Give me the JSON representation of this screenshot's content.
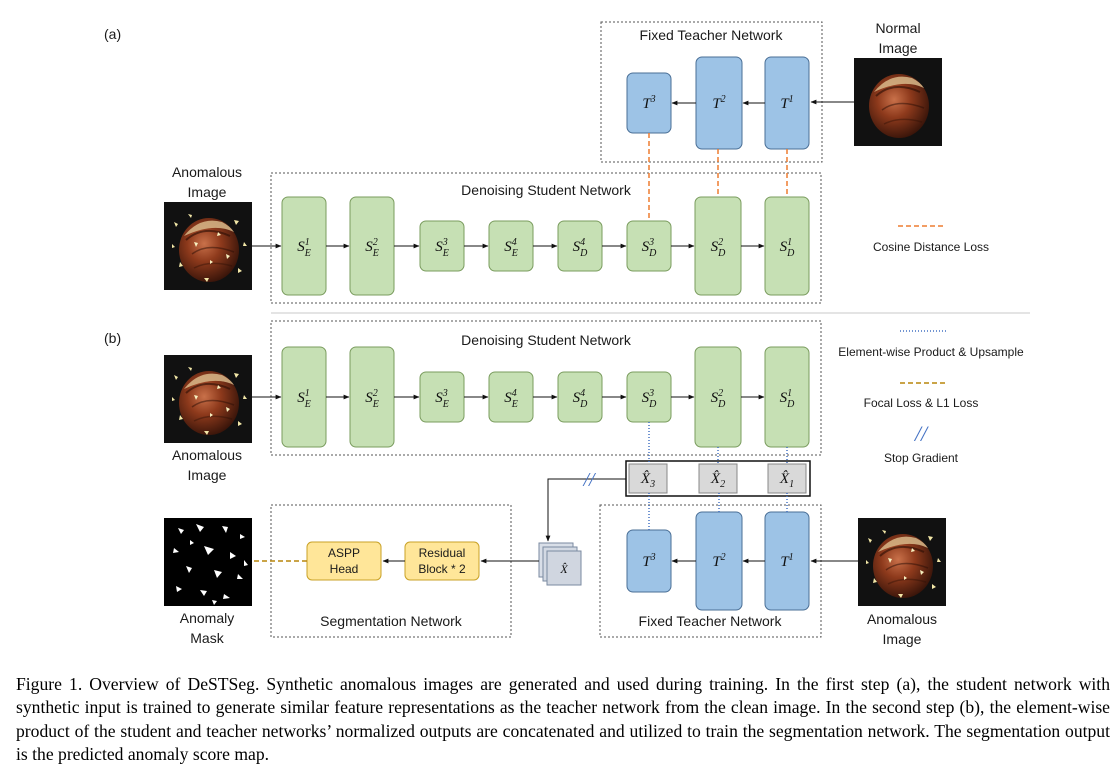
{
  "panel_a": {
    "tag": "(a)",
    "teacher_title": "Fixed Teacher Network",
    "student_title": "Denoising Student Network",
    "normal_image_label": [
      "Normal",
      "Image"
    ],
    "anomalous_image_label": [
      "Anomalous",
      "Image"
    ],
    "legend_cosine": "Cosine Distance Loss"
  },
  "panel_b": {
    "tag": "(b)",
    "student_title": "Denoising Student Network",
    "teacher_title": "Fixed Teacher Network",
    "segmentation_title": "Segmentation Network",
    "anomalous_image_label": [
      "Anomalous",
      "Image"
    ],
    "anomalous_image_label_right": [
      "Anomalous",
      "Image"
    ],
    "anomaly_mask_label": [
      "Anomaly",
      "Mask"
    ],
    "aspp_label": [
      "ASPP",
      "Head"
    ],
    "residual_label": [
      "Residual",
      "Block * 2"
    ],
    "legend_product": "Element-wise Product & Upsample",
    "legend_focal": "Focal Loss & L1 Loss",
    "legend_stop": "Stop Gradient",
    "stop_glyph": "//"
  },
  "blocks": {
    "teacher": [
      {
        "base": "T",
        "sup": "3"
      },
      {
        "base": "T",
        "sup": "2"
      },
      {
        "base": "T",
        "sup": "1"
      }
    ],
    "student": [
      {
        "base": "S",
        "sub": "E",
        "sup": "1"
      },
      {
        "base": "S",
        "sub": "E",
        "sup": "2"
      },
      {
        "base": "S",
        "sub": "E",
        "sup": "3"
      },
      {
        "base": "S",
        "sub": "E",
        "sup": "4"
      },
      {
        "base": "S",
        "sub": "D",
        "sup": "4"
      },
      {
        "base": "S",
        "sub": "D",
        "sup": "3"
      },
      {
        "base": "S",
        "sub": "D",
        "sup": "2"
      },
      {
        "base": "S",
        "sub": "D",
        "sup": "1"
      }
    ],
    "xhat": [
      {
        "base": "X̂",
        "sub": "3"
      },
      {
        "base": "X̂",
        "sub": "2"
      },
      {
        "base": "X̂",
        "sub": "1"
      }
    ],
    "xhat_stack": "X̂"
  },
  "colors": {
    "student_fill": "#c6e0b4",
    "student_stroke": "#7a9c5e",
    "teacher_fill": "#9dc3e6",
    "teacher_stroke": "#4a6f96",
    "head_fill": "#ffe699",
    "head_stroke": "#c9a227",
    "cosine_line": "#ed7d31",
    "product_line": "#4472c4",
    "focal_line": "#b8860b"
  },
  "caption": "Figure 1. Overview of DeSTSeg. Synthetic anomalous images are generated and used during training. In the first step (a), the student network with synthetic input is trained to generate similar feature representations as the teacher network from the clean image. In the second step (b), the element-wise product of the student and teacher networks’ normalized outputs are concatenated and utilized to train the segmentation network. The segmentation output is the predicted anomaly score map."
}
